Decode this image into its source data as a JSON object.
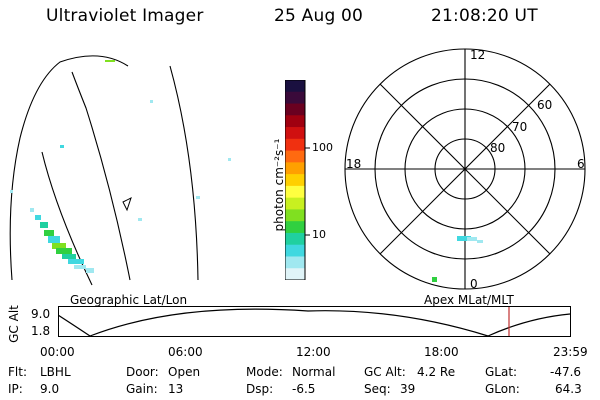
{
  "header": {
    "title": "Ultraviolet Imager",
    "date": "25 Aug 00",
    "time": "21:08:20 UT"
  },
  "colorbar": {
    "unit_label": "photon cm⁻²s⁻¹",
    "ticks": [
      "100",
      "10"
    ],
    "colors": [
      "#1a1040",
      "#3a0a3a",
      "#6a0020",
      "#a00010",
      "#d01010",
      "#f03010",
      "#ff6a10",
      "#ffa000",
      "#ffd000",
      "#ffff40",
      "#c8f020",
      "#80e020",
      "#30d040",
      "#20d0a0",
      "#40d8e0",
      "#a0e8f0",
      "#e0f4f8"
    ]
  },
  "polar_plot": {
    "mlt_labels": {
      "top": "12",
      "left": "18",
      "right": "6",
      "bottom": "0"
    },
    "lat_labels": [
      "60",
      "70",
      "80"
    ]
  },
  "map_panel": {
    "left_label": "Geographic Lat/Lon",
    "right_label": "Apex MLat/MLT"
  },
  "altitude_chart": {
    "axis_label": "GC Alt",
    "y_ticks": [
      "9.0",
      "1.8"
    ],
    "x_ticks": [
      "00:00",
      "06:00",
      "12:00",
      "18:00",
      "23:59"
    ],
    "current_time_marker_color": "#c03030"
  },
  "info": {
    "flt_label": "Flt:",
    "flt_value": "LBHL",
    "ip_label": "IP:",
    "ip_value": "9.0",
    "door_label": "Door:",
    "door_value": "Open",
    "gain_label": "Gain:",
    "gain_value": "13",
    "mode_label": "Mode:",
    "mode_value": "Normal",
    "dsp_label": "Dsp:",
    "dsp_value": "-6.5",
    "gcalt_label": "GC Alt:",
    "gcalt_value": "4.2 Re",
    "seq_label": "Seq:",
    "seq_value": "39",
    "glat_label": "GLat:",
    "glat_value": "-47.6",
    "glon_label": "GLon:",
    "glon_value": "64.3"
  }
}
